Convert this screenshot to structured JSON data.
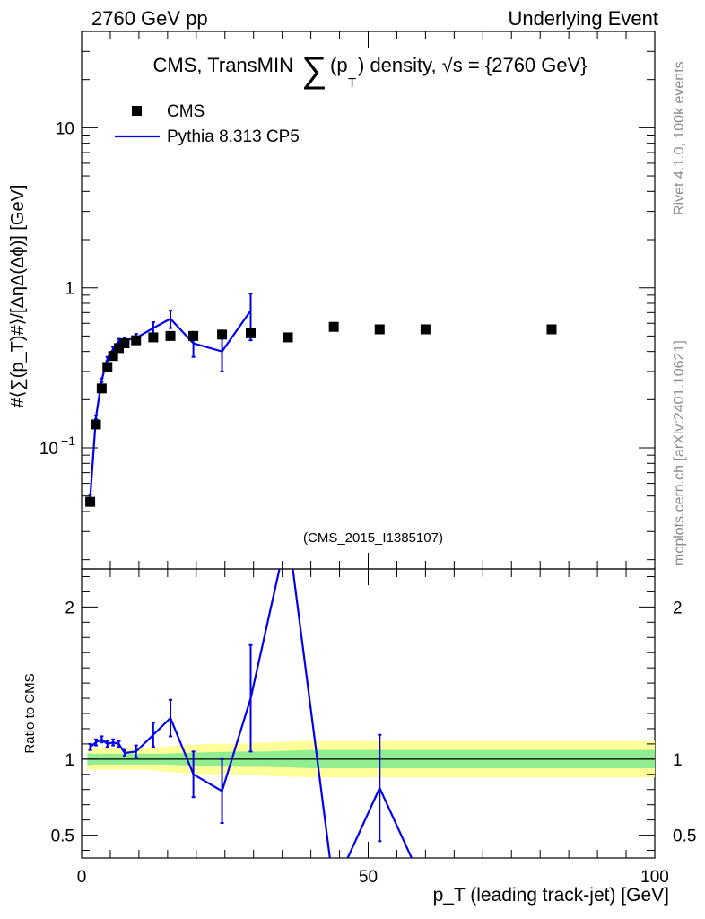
{
  "header": {
    "left": "2760 GeV pp",
    "right": "Underlying Event"
  },
  "title": {
    "prefix": "CMS, TransMIN",
    "sum_symbol": "∑",
    "pt": "(p",
    "pt_sub": "T",
    "suffix": ") density, √s = {2760 GeV}"
  },
  "side_labels": {
    "rivet": "Rivet 4.1.0,  100k events",
    "mcplots": "mcplots.cern.ch [arXiv:2401.10621]"
  },
  "analysis_id": "(CMS_2015_I1385107)",
  "colors": {
    "data": "#000000",
    "mc": "#0000ee",
    "band_inner": "#90ee90",
    "band_outer": "#ffff99"
  },
  "chart_data": [
    {
      "type": "scatter",
      "panel": "main",
      "ylabel": "#⟨∑(p_T)#⟩/[ΔηΔ(Δϕ)] [GeV]",
      "yscale": "log",
      "xlim": [
        0,
        100
      ],
      "ylim": [
        0.0175,
        40
      ],
      "yticks": [
        {
          "value": 0.1,
          "label": "10",
          "sup": "−1"
        },
        {
          "value": 1,
          "label": "1",
          "sup": ""
        },
        {
          "value": 10,
          "label": "10",
          "sup": ""
        }
      ],
      "legend": {
        "placement": "top-left",
        "entries": [
          {
            "name": "CMS",
            "marker": "square"
          },
          {
            "name": "Pythia 8.313 CP5",
            "marker": "line"
          }
        ]
      },
      "series": [
        {
          "name": "CMS",
          "x": [
            1.5,
            2.5,
            3.5,
            4.5,
            5.5,
            6.5,
            7.5,
            9.5,
            12.5,
            15.5,
            19.5,
            24.5,
            29.5,
            36,
            44,
            52,
            60,
            82
          ],
          "y": [
            0.046,
            0.14,
            0.235,
            0.32,
            0.375,
            0.42,
            0.45,
            0.47,
            0.49,
            0.5,
            0.5,
            0.51,
            0.52,
            0.49,
            0.57,
            0.55,
            0.55,
            0.55
          ]
        },
        {
          "name": "Pythia 8.313 CP5",
          "x": [
            1.5,
            2.5,
            3.5,
            4.5,
            5.5,
            6.5,
            7.5,
            9.5,
            12.5,
            15.5,
            19.5,
            24.5,
            29.5
          ],
          "y": [
            0.049,
            0.155,
            0.265,
            0.36,
            0.415,
            0.465,
            0.47,
            0.485,
            0.56,
            0.64,
            0.45,
            0.4,
            0.72
          ],
          "err_low": [
            0.002,
            0.004,
            0.007,
            0.01,
            0.012,
            0.015,
            0.02,
            0.03,
            0.05,
            0.08,
            0.08,
            0.1,
            0.25
          ],
          "err_high": [
            0.002,
            0.004,
            0.007,
            0.01,
            0.012,
            0.015,
            0.02,
            0.03,
            0.05,
            0.08,
            0.08,
            0.1,
            0.2
          ]
        }
      ]
    },
    {
      "type": "line",
      "panel": "ratio",
      "xlabel": "p_T (leading track-jet) [GeV]",
      "ylabel": "Ratio to CMS",
      "xlim": [
        0,
        100
      ],
      "ylim": [
        0.35,
        2.25
      ],
      "xticks": [
        0,
        50,
        100
      ],
      "yticks": [
        0.5,
        1,
        2
      ],
      "reference": 1,
      "band_x": [
        1,
        2,
        3,
        4,
        5,
        6,
        7,
        8,
        11,
        14,
        17,
        22,
        27,
        32,
        40,
        48,
        56,
        64,
        100
      ],
      "band_inner": [
        0.04,
        0.035,
        0.035,
        0.035,
        0.035,
        0.035,
        0.035,
        0.035,
        0.035,
        0.035,
        0.04,
        0.045,
        0.05,
        0.05,
        0.06,
        0.06,
        0.06,
        0.06,
        0.06
      ],
      "band_outer": [
        0.07,
        0.07,
        0.07,
        0.07,
        0.07,
        0.07,
        0.07,
        0.07,
        0.07,
        0.08,
        0.09,
        0.1,
        0.1,
        0.11,
        0.12,
        0.12,
        0.12,
        0.12,
        0.12
      ],
      "series": [
        {
          "name": "Pythia 8.313 CP5",
          "x": [
            1.5,
            2.5,
            3.5,
            4.5,
            5.5,
            6.5,
            7.5,
            9.5,
            12.5,
            15.5,
            19.5,
            24.5,
            29.5,
            36,
            44,
            52,
            60
          ],
          "y": [
            1.08,
            1.11,
            1.13,
            1.1,
            1.11,
            1.1,
            1.04,
            1.05,
            1.16,
            1.27,
            0.9,
            0.79,
            1.4,
            2.5,
            0.15,
            0.81,
            0.15
          ],
          "err": [
            0.02,
            0.02,
            0.02,
            0.02,
            0.02,
            0.02,
            0.02,
            0.04,
            0.08,
            0.12,
            0.15,
            0.21,
            0.35,
            0,
            0,
            0.35,
            0
          ]
        }
      ]
    }
  ]
}
